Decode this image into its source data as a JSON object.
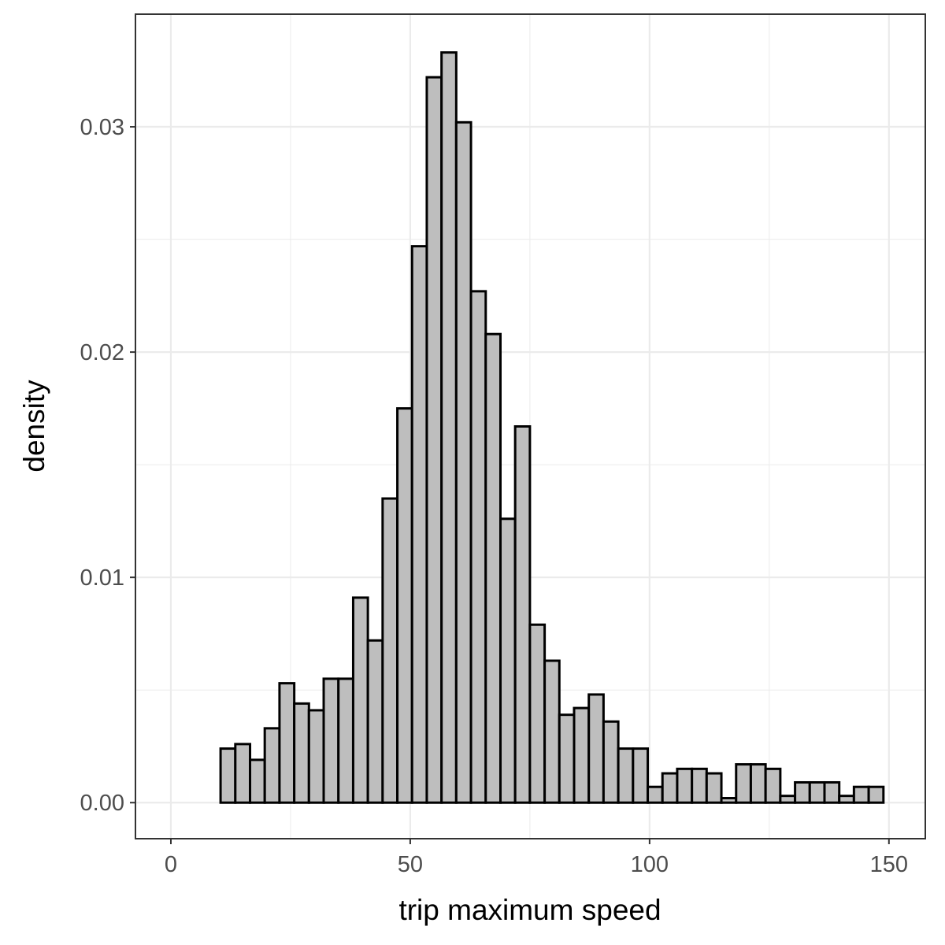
{
  "chart_data": {
    "type": "histogram",
    "x_label": "trip maximum speed",
    "y_label": "density",
    "bins": [
      1.15,
      4.23,
      7.3,
      10.38,
      13.46,
      16.54,
      19.61,
      22.69,
      25.77,
      28.84,
      31.92,
      35.0,
      38.08,
      41.15,
      44.23,
      47.31,
      50.38,
      53.46,
      56.54,
      59.61,
      62.69,
      65.77,
      68.85,
      71.92,
      75.0,
      78.08,
      81.15,
      84.23,
      87.31,
      90.38,
      93.46,
      96.54,
      99.62,
      102.69,
      105.77,
      108.85,
      111.92,
      115.0,
      118.08,
      121.15,
      124.23,
      127.31,
      130.39,
      133.46,
      136.54,
      139.62,
      142.69,
      145.77,
      148.85
    ],
    "values": [
      0,
      0,
      0,
      0.0024,
      0.0026,
      0.0019,
      0.0033,
      0.0053,
      0.0044,
      0.0041,
      0.0055,
      0.0055,
      0.0091,
      0.0072,
      0.0135,
      0.0175,
      0.0247,
      0.0322,
      0.0333,
      0.0302,
      0.0227,
      0.0208,
      0.0126,
      0.0167,
      0.0079,
      0.0063,
      0.0039,
      0.0042,
      0.0048,
      0.0036,
      0.0024,
      0.0024,
      0.0007,
      0.0013,
      0.0015,
      0.0015,
      0.0013,
      0.0002,
      0.0017,
      0.0017,
      0.0015,
      0.0003,
      0.0009,
      0.0009,
      0.0009,
      0.0003,
      0.0007,
      0.0007
    ],
    "color": "#bebebe",
    "edge_color": "#000000",
    "xlim": [
      -7.4,
      157.6
    ],
    "ylim": [
      -0.0016,
      0.035
    ],
    "xticks": [
      0,
      50,
      100,
      150
    ],
    "yticks": [
      {
        "value": 0,
        "label": "0.00"
      },
      0.01,
      0.02,
      0.03
    ],
    "grid": true
  }
}
